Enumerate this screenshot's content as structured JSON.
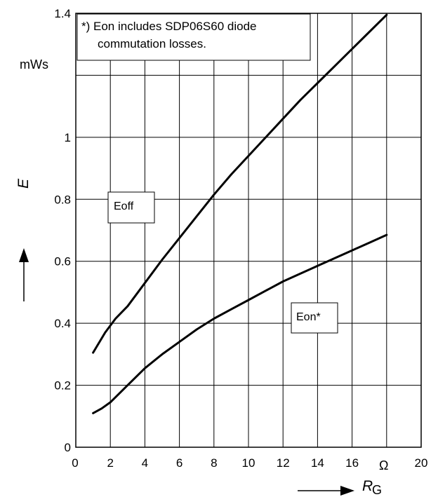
{
  "chart_data": {
    "type": "line",
    "note": [
      "*) Eon includes SDP06S60 diode",
      "commutation losses."
    ],
    "y_unit": "mWs",
    "x_unit": "Ω",
    "y_axis_label": "E",
    "x_axis_label": "R",
    "x_axis_label_sub": "G",
    "xlim": [
      0,
      20
    ],
    "ylim": [
      0,
      1.4
    ],
    "x_ticks": [
      0,
      2,
      4,
      6,
      8,
      10,
      12,
      14,
      16,
      20
    ],
    "x_tick_labels": [
      "0",
      "2",
      "4",
      "6",
      "8",
      "10",
      "12",
      "14",
      "16",
      "20"
    ],
    "y_ticks": [
      0,
      0.2,
      0.4,
      0.6,
      0.8,
      1,
      1.4
    ],
    "y_tick_labels": [
      "0",
      "0.2",
      "0.4",
      "0.6",
      "0.8",
      "1",
      "1.4"
    ],
    "grid": true,
    "series": [
      {
        "name": "Eoff",
        "x": [
          1,
          1.7,
          2.3,
          3,
          4,
          5,
          6,
          7,
          8,
          9,
          10,
          11,
          12,
          13,
          14,
          15,
          16,
          17,
          18
        ],
        "y": [
          0.305,
          0.37,
          0.415,
          0.455,
          0.53,
          0.605,
          0.675,
          0.745,
          0.815,
          0.88,
          0.94,
          1.0,
          1.06,
          1.12,
          1.175,
          1.23,
          1.285,
          1.34,
          1.395
        ]
      },
      {
        "name": "Eon*",
        "x": [
          1,
          1.5,
          2,
          3,
          4,
          5,
          6,
          7,
          8,
          9,
          10,
          11,
          12,
          13,
          14,
          15,
          16,
          17,
          18
        ],
        "y": [
          0.11,
          0.125,
          0.145,
          0.2,
          0.255,
          0.3,
          0.34,
          0.38,
          0.415,
          0.445,
          0.475,
          0.505,
          0.535,
          0.56,
          0.585,
          0.61,
          0.635,
          0.66,
          0.685
        ]
      }
    ]
  }
}
